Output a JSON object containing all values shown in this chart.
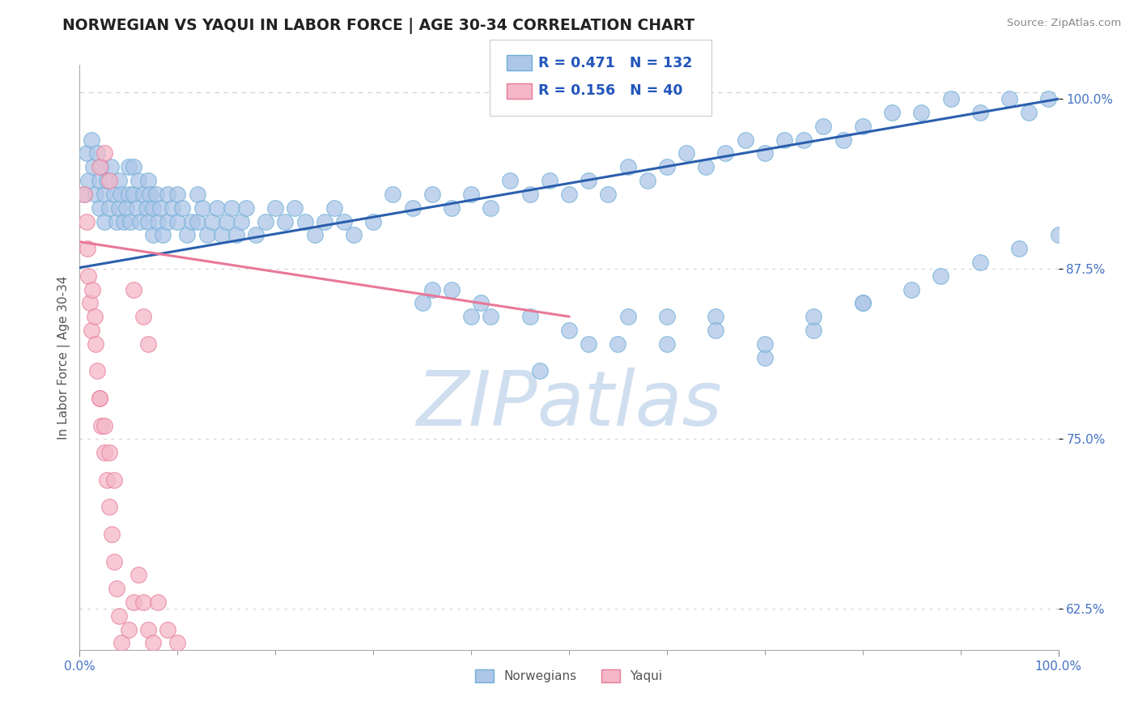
{
  "title": "NORWEGIAN VS YAQUI IN LABOR FORCE | AGE 30-34 CORRELATION CHART",
  "source": "Source: ZipAtlas.com",
  "ylabel": "In Labor Force | Age 30-34",
  "xlim": [
    0.0,
    1.0
  ],
  "ylim": [
    0.595,
    1.025
  ],
  "yticks": [
    0.625,
    0.75,
    0.875,
    1.0
  ],
  "ytick_labels": [
    "62.5%",
    "75.0%",
    "87.5%",
    "100.0%"
  ],
  "xticks": [
    0.0,
    1.0
  ],
  "xtick_labels": [
    "0.0%",
    "100.0%"
  ],
  "norwegian_R": 0.471,
  "norwegian_N": 132,
  "yaqui_R": 0.156,
  "yaqui_N": 40,
  "norwegian_color": "#aec6e8",
  "norwegian_edge": "#6baed6",
  "yaqui_color": "#f4b8c8",
  "yaqui_edge": "#e87898",
  "trend_norwegian_color": "#2b5fad",
  "trend_yaqui_color": "#e87898",
  "watermark": "ZIPatlas",
  "watermark_color": "#d0dff0",
  "background_color": "#ffffff",
  "title_color": "#222222",
  "legend_color": "#2255bb",
  "title_fontsize": 13.5,
  "norw_x": [
    0.005,
    0.007,
    0.009,
    0.012,
    0.014,
    0.016,
    0.018,
    0.02,
    0.02,
    0.022,
    0.025,
    0.025,
    0.028,
    0.03,
    0.032,
    0.035,
    0.038,
    0.04,
    0.04,
    0.042,
    0.045,
    0.048,
    0.05,
    0.05,
    0.052,
    0.055,
    0.055,
    0.058,
    0.06,
    0.062,
    0.065,
    0.068,
    0.07,
    0.07,
    0.072,
    0.075,
    0.075,
    0.078,
    0.08,
    0.082,
    0.085,
    0.09,
    0.09,
    0.095,
    0.1,
    0.1,
    0.105,
    0.11,
    0.115,
    0.12,
    0.12,
    0.125,
    0.13,
    0.135,
    0.14,
    0.145,
    0.15,
    0.155,
    0.16,
    0.165,
    0.17,
    0.18,
    0.19,
    0.2,
    0.21,
    0.22,
    0.23,
    0.24,
    0.25,
    0.26,
    0.27,
    0.28,
    0.3,
    0.32,
    0.34,
    0.36,
    0.38,
    0.4,
    0.42,
    0.44,
    0.46,
    0.48,
    0.5,
    0.52,
    0.54,
    0.56,
    0.58,
    0.6,
    0.62,
    0.64,
    0.66,
    0.68,
    0.7,
    0.72,
    0.74,
    0.76,
    0.78,
    0.8,
    0.83,
    0.86,
    0.89,
    0.92,
    0.95,
    0.97,
    0.99,
    0.6,
    0.65,
    0.7,
    0.75,
    0.8,
    0.38,
    0.42,
    0.47,
    0.52,
    0.56,
    0.35,
    0.4,
    0.36,
    0.41,
    0.46,
    0.5,
    0.55,
    0.6,
    0.65,
    0.7,
    0.75,
    0.8,
    0.85,
    0.88,
    0.92,
    0.96,
    1.0
  ],
  "norw_y": [
    0.93,
    0.96,
    0.94,
    0.97,
    0.95,
    0.93,
    0.96,
    0.94,
    0.92,
    0.95,
    0.93,
    0.91,
    0.94,
    0.92,
    0.95,
    0.93,
    0.91,
    0.94,
    0.92,
    0.93,
    0.91,
    0.92,
    0.93,
    0.95,
    0.91,
    0.93,
    0.95,
    0.92,
    0.94,
    0.91,
    0.93,
    0.92,
    0.94,
    0.91,
    0.93,
    0.92,
    0.9,
    0.93,
    0.91,
    0.92,
    0.9,
    0.93,
    0.91,
    0.92,
    0.93,
    0.91,
    0.92,
    0.9,
    0.91,
    0.93,
    0.91,
    0.92,
    0.9,
    0.91,
    0.92,
    0.9,
    0.91,
    0.92,
    0.9,
    0.91,
    0.92,
    0.9,
    0.91,
    0.92,
    0.91,
    0.92,
    0.91,
    0.9,
    0.91,
    0.92,
    0.91,
    0.9,
    0.91,
    0.93,
    0.92,
    0.93,
    0.92,
    0.93,
    0.92,
    0.94,
    0.93,
    0.94,
    0.93,
    0.94,
    0.93,
    0.95,
    0.94,
    0.95,
    0.96,
    0.95,
    0.96,
    0.97,
    0.96,
    0.97,
    0.97,
    0.98,
    0.97,
    0.98,
    0.99,
    0.99,
    1.0,
    0.99,
    1.0,
    0.99,
    1.0,
    0.82,
    0.84,
    0.81,
    0.83,
    0.85,
    0.86,
    0.84,
    0.8,
    0.82,
    0.84,
    0.85,
    0.84,
    0.86,
    0.85,
    0.84,
    0.83,
    0.82,
    0.84,
    0.83,
    0.82,
    0.84,
    0.85,
    0.86,
    0.87,
    0.88,
    0.89,
    0.9
  ],
  "yaqui_x": [
    0.005,
    0.007,
    0.008,
    0.009,
    0.01,
    0.012,
    0.013,
    0.015,
    0.016,
    0.018,
    0.02,
    0.022,
    0.025,
    0.028,
    0.03,
    0.033,
    0.035,
    0.038,
    0.04,
    0.043,
    0.046,
    0.05,
    0.055,
    0.06,
    0.065,
    0.07,
    0.075,
    0.08,
    0.09,
    0.1,
    0.055,
    0.065,
    0.07,
    0.02,
    0.025,
    0.03,
    0.02,
    0.025,
    0.03,
    0.035
  ],
  "yaqui_y": [
    0.93,
    0.91,
    0.89,
    0.87,
    0.85,
    0.83,
    0.86,
    0.84,
    0.82,
    0.8,
    0.78,
    0.76,
    0.74,
    0.72,
    0.7,
    0.68,
    0.66,
    0.64,
    0.62,
    0.6,
    0.58,
    0.61,
    0.63,
    0.65,
    0.63,
    0.61,
    0.6,
    0.63,
    0.61,
    0.6,
    0.86,
    0.84,
    0.82,
    0.95,
    0.96,
    0.94,
    0.78,
    0.76,
    0.74,
    0.72
  ],
  "norw_trend_x": [
    0.0,
    1.0
  ],
  "norw_trend_y": [
    0.876,
    1.0
  ],
  "yaqui_trend_x": [
    0.0,
    0.5
  ],
  "yaqui_trend_y": [
    0.895,
    0.84
  ]
}
